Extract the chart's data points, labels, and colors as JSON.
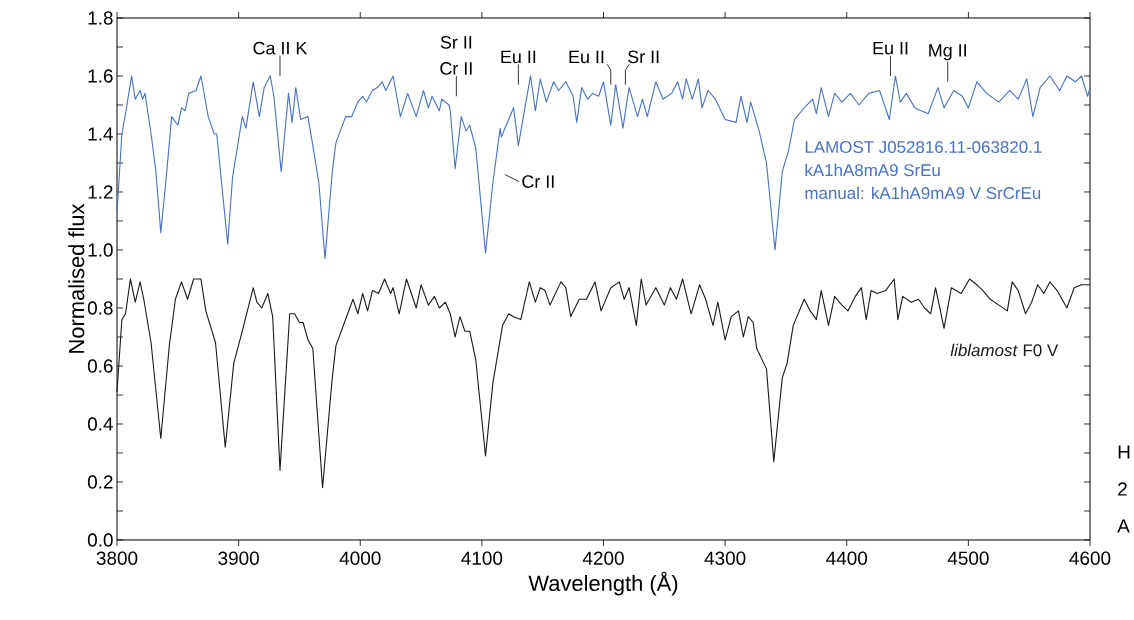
{
  "chart_data": {
    "type": "line",
    "xlabel": "Wavelength (Å)",
    "ylabel": "Normalised flux",
    "xlim": [
      3800,
      4600
    ],
    "ylim": [
      0,
      1.8
    ],
    "xticks": [
      3800,
      3900,
      4000,
      4100,
      4200,
      4300,
      4400,
      4500,
      4600
    ],
    "yticks": [
      {
        "value": 0,
        "label": "0.0"
      },
      {
        "value": 0.1,
        "label": null
      },
      {
        "value": 0.2,
        "label": "0.2"
      },
      {
        "value": 0.3,
        "label": null
      },
      {
        "value": 0.4,
        "label": "0.4"
      },
      {
        "value": 0.5,
        "label": null
      },
      {
        "value": 0.6,
        "label": "0.6"
      },
      {
        "value": 0.7,
        "label": null
      },
      {
        "value": 0.8,
        "label": "0.8"
      },
      {
        "value": 0.9,
        "label": null
      },
      {
        "value": 1,
        "label": "1.0"
      },
      {
        "value": 1.1,
        "label": null
      },
      {
        "value": 1.2,
        "label": "1.2"
      },
      {
        "value": 1.3,
        "label": null
      },
      {
        "value": 1.4,
        "label": "1.4"
      },
      {
        "value": 1.5,
        "label": null
      },
      {
        "value": 1.6,
        "label": "1.6"
      },
      {
        "value": 1.7,
        "label": null
      },
      {
        "value": 1.8,
        "label": "1.8"
      }
    ],
    "series": [
      {
        "name": "LAMOST J052816.11-063820.1",
        "color": "#4472c4",
        "x": [
          3800,
          3804,
          3807,
          3812,
          3815,
          3819,
          3821,
          3823,
          3828,
          3832,
          3836,
          3840,
          3845,
          3850,
          3853,
          3856,
          3859,
          3865,
          3869,
          3875,
          3880,
          3882,
          3891,
          3895,
          3903,
          3906,
          3912,
          3917,
          3921,
          3926,
          3929,
          3935,
          3941,
          3944,
          3947,
          3951,
          3957,
          3961,
          3966,
          3971,
          3977,
          3980,
          3988,
          3993,
          3998,
          4002,
          4005,
          4010,
          4014,
          4018,
          4021,
          4027,
          4033,
          4039,
          4046,
          4052,
          4056,
          4059,
          4065,
          4067,
          4073,
          4074,
          4078,
          4083,
          4087,
          4090,
          4095,
          4103,
          4109,
          4115,
          4116,
          4126,
          4130,
          4137,
          4140,
          4144,
          4148,
          4153,
          4159,
          4163,
          4169,
          4175,
          4178,
          4182,
          4187,
          4191,
          4196,
          4200,
          4206,
          4210,
          4216,
          4221,
          4228,
          4232,
          4236,
          4243,
          4249,
          4256,
          4261,
          4265,
          4268,
          4273,
          4278,
          4281,
          4286,
          4292,
          4300,
          4309,
          4313,
          4318,
          4321,
          4328,
          4334,
          4341,
          4347,
          4352,
          4357,
          4365,
          4372,
          4375,
          4379,
          4385,
          4390,
          4396,
          4403,
          4410,
          4418,
          4427,
          4435,
          4440,
          4444,
          4449,
          4456,
          4467,
          4475,
          4480,
          4488,
          4495,
          4500,
          4507,
          4515,
          4525,
          4534,
          4541,
          4548,
          4553,
          4559,
          4567,
          4575,
          4581,
          4588,
          4593,
          4598,
          4600
        ],
        "values": [
          1.13,
          1.4,
          1.47,
          1.6,
          1.52,
          1.55,
          1.52,
          1.54,
          1.4,
          1.27,
          1.06,
          1.23,
          1.46,
          1.43,
          1.49,
          1.48,
          1.54,
          1.55,
          1.6,
          1.46,
          1.4,
          1.4,
          1.02,
          1.25,
          1.46,
          1.42,
          1.58,
          1.46,
          1.56,
          1.6,
          1.53,
          1.27,
          1.54,
          1.44,
          1.56,
          1.45,
          1.46,
          1.36,
          1.23,
          0.97,
          1.27,
          1.37,
          1.46,
          1.46,
          1.51,
          1.53,
          1.51,
          1.55,
          1.56,
          1.58,
          1.55,
          1.6,
          1.46,
          1.54,
          1.46,
          1.55,
          1.49,
          1.53,
          1.48,
          1.52,
          1.5,
          1.48,
          1.28,
          1.46,
          1.41,
          1.43,
          1.35,
          0.99,
          1.23,
          1.42,
          1.39,
          1.49,
          1.36,
          1.53,
          1.6,
          1.48,
          1.59,
          1.51,
          1.58,
          1.55,
          1.58,
          1.53,
          1.44,
          1.56,
          1.52,
          1.54,
          1.53,
          1.58,
          1.43,
          1.57,
          1.42,
          1.56,
          1.46,
          1.52,
          1.46,
          1.58,
          1.52,
          1.54,
          1.58,
          1.52,
          1.59,
          1.52,
          1.59,
          1.49,
          1.55,
          1.52,
          1.45,
          1.44,
          1.53,
          1.44,
          1.51,
          1.41,
          1.3,
          1.0,
          1.27,
          1.34,
          1.45,
          1.49,
          1.52,
          1.47,
          1.56,
          1.46,
          1.54,
          1.51,
          1.54,
          1.5,
          1.54,
          1.55,
          1.45,
          1.6,
          1.51,
          1.54,
          1.49,
          1.47,
          1.56,
          1.49,
          1.55,
          1.53,
          1.49,
          1.58,
          1.54,
          1.51,
          1.55,
          1.52,
          1.59,
          1.46,
          1.56,
          1.6,
          1.55,
          1.6,
          1.58,
          1.6,
          1.53,
          1.56
        ]
      },
      {
        "name": "*liblamost* F0 V",
        "color": "#1a1a1a",
        "x": [
          3800,
          3804,
          3807,
          3811,
          3815,
          3819,
          3822,
          3828,
          3836,
          3843,
          3848,
          3853,
          3858,
          3863,
          3869,
          3873,
          3881,
          3889,
          3896,
          3903,
          3912,
          3915,
          3919,
          3924,
          3928,
          3934,
          3942,
          3946,
          3950,
          3953,
          3957,
          3961,
          3969,
          3977,
          3980,
          3987,
          3994,
          3998,
          4002,
          4006,
          4010,
          4015,
          4020,
          4025,
          4027,
          4032,
          4038,
          4046,
          4050,
          4056,
          4061,
          4065,
          4070,
          4074,
          4078,
          4082,
          4086,
          4090,
          4095,
          4103,
          4109,
          4117,
          4122,
          4126,
          4132,
          4139,
          4144,
          4148,
          4152,
          4156,
          4165,
          4169,
          4173,
          4180,
          4186,
          4193,
          4198,
          4206,
          4213,
          4217,
          4221,
          4227,
          4231,
          4235,
          4243,
          4250,
          4255,
          4260,
          4265,
          4272,
          4279,
          4284,
          4290,
          4294,
          4300,
          4305,
          4311,
          4315,
          4319,
          4323,
          4326,
          4334,
          4340,
          4347,
          4351,
          4356,
          4365,
          4370,
          4375,
          4379,
          4385,
          4390,
          4396,
          4401,
          4407,
          4412,
          4416,
          4420,
          4425,
          4432,
          4439,
          4442,
          4446,
          4453,
          4459,
          4464,
          4469,
          4473,
          4480,
          4486,
          4494,
          4501,
          4507,
          4512,
          4518,
          4525,
          4532,
          4536,
          4541,
          4547,
          4552,
          4557,
          4562,
          4567,
          4573,
          4581,
          4587,
          4593,
          4600
        ],
        "values": [
          0.51,
          0.76,
          0.78,
          0.9,
          0.82,
          0.89,
          0.83,
          0.68,
          0.35,
          0.67,
          0.83,
          0.89,
          0.83,
          0.9,
          0.9,
          0.79,
          0.68,
          0.32,
          0.61,
          0.72,
          0.87,
          0.82,
          0.8,
          0.85,
          0.77,
          0.24,
          0.78,
          0.78,
          0.75,
          0.75,
          0.69,
          0.66,
          0.18,
          0.56,
          0.67,
          0.75,
          0.83,
          0.78,
          0.85,
          0.79,
          0.86,
          0.85,
          0.9,
          0.85,
          0.87,
          0.78,
          0.9,
          0.8,
          0.88,
          0.81,
          0.84,
          0.8,
          0.82,
          0.78,
          0.7,
          0.77,
          0.72,
          0.72,
          0.62,
          0.29,
          0.54,
          0.74,
          0.78,
          0.77,
          0.76,
          0.89,
          0.82,
          0.87,
          0.86,
          0.81,
          0.89,
          0.87,
          0.77,
          0.83,
          0.83,
          0.89,
          0.79,
          0.87,
          0.89,
          0.83,
          0.87,
          0.74,
          0.9,
          0.81,
          0.87,
          0.81,
          0.87,
          0.83,
          0.9,
          0.78,
          0.88,
          0.83,
          0.74,
          0.82,
          0.69,
          0.77,
          0.79,
          0.7,
          0.77,
          0.75,
          0.66,
          0.59,
          0.27,
          0.56,
          0.61,
          0.74,
          0.83,
          0.79,
          0.76,
          0.86,
          0.74,
          0.84,
          0.81,
          0.79,
          0.84,
          0.87,
          0.76,
          0.86,
          0.85,
          0.86,
          0.9,
          0.76,
          0.84,
          0.82,
          0.83,
          0.8,
          0.78,
          0.87,
          0.73,
          0.87,
          0.85,
          0.9,
          0.88,
          0.86,
          0.83,
          0.81,
          0.79,
          0.89,
          0.86,
          0.78,
          0.82,
          0.88,
          0.85,
          0.89,
          0.86,
          0.8,
          0.87,
          0.88,
          0.88
        ]
      }
    ],
    "annotations": [
      "Ca II K",
      "Sr II",
      "Cr II",
      "Eu II",
      "Eu II",
      "Sr II",
      "Eu II",
      "Mg II",
      "Cr II",
      "kA1hA8mA9 SrEu",
      "manual: kA1hA9mA9 V SrCrEu",
      "H",
      "2",
      "A"
    ]
  }
}
